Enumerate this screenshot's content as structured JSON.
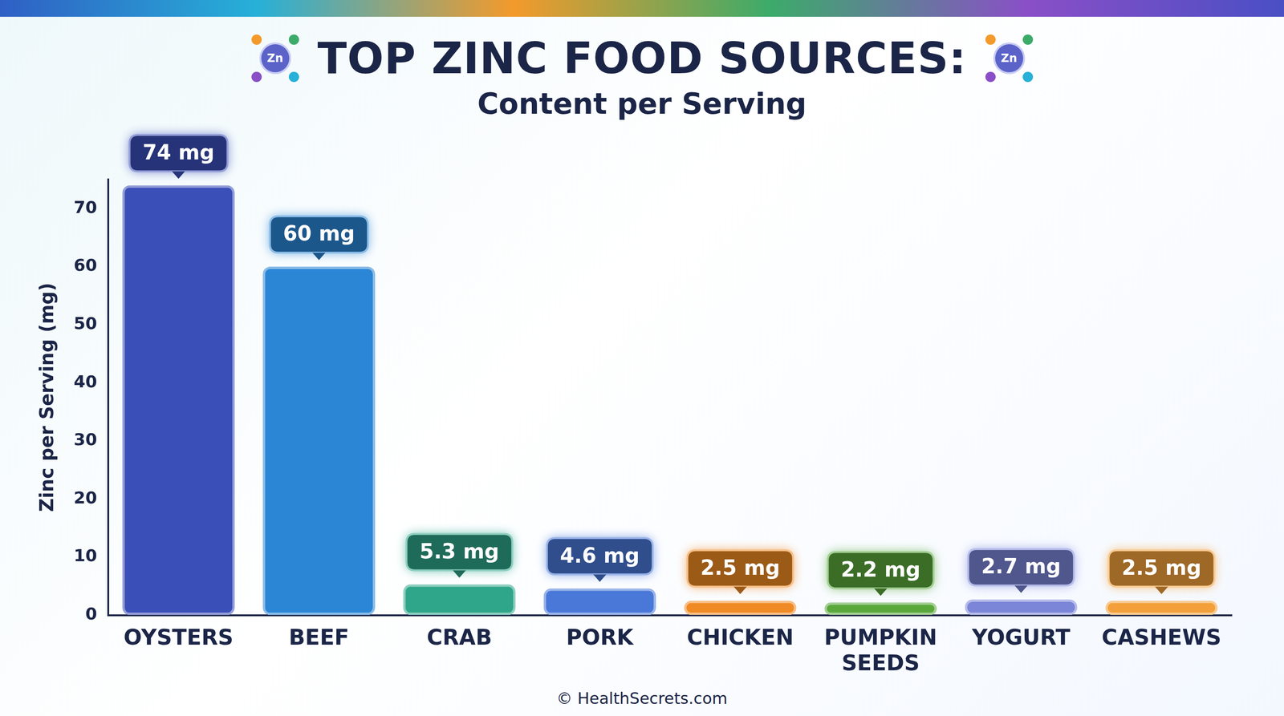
{
  "chart_data": {
    "type": "bar",
    "title": "TOP ZINC FOOD SOURCES:",
    "subtitle": "Content per Serving",
    "icon_label": "Zn",
    "source": "© HealthSecrets.com",
    "y_label": "Zinc per Serving (mg)",
    "categories": [
      "OYSTERS",
      "BEEF",
      "CRAB",
      "PORK",
      "CHICKEN",
      "PUMPKIN SEEDS",
      "YOGURT",
      "CASHEWS"
    ],
    "values": [
      74,
      60,
      5.3,
      4.6,
      2.5,
      2.2,
      2.7,
      2.5
    ],
    "value_labels": [
      "74 mg",
      "60 mg",
      "5.3 mg",
      "4.6 mg",
      "2.5 mg",
      "2.2 mg",
      "2.7 mg",
      "2.5 mg"
    ],
    "colors": [
      "#3a4fb8",
      "#2b86d6",
      "#2fa58a",
      "#4a78d8",
      "#f08a24",
      "#5aa83c",
      "#7b86d8",
      "#f3a03a"
    ],
    "ylim": [
      0,
      75
    ],
    "yticks": [
      0,
      10,
      20,
      30,
      40,
      50,
      60,
      70
    ],
    "grid": false,
    "data_labels": true
  }
}
